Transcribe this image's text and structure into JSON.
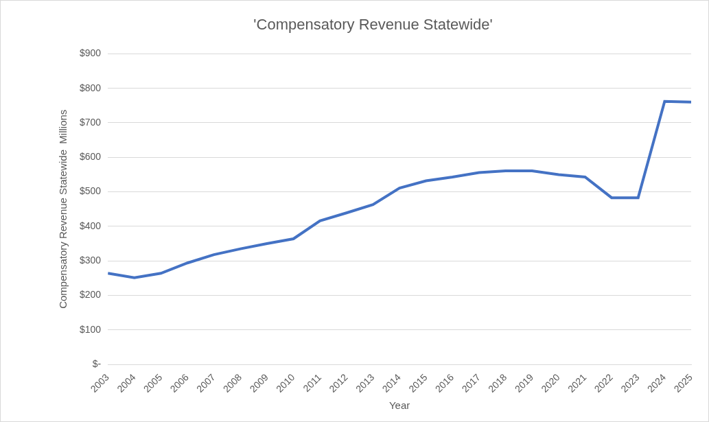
{
  "chart_data": {
    "type": "line",
    "title": "'Compensatory Revenue Statewide'",
    "x_label": "Year",
    "y_label": "Compensatory Revenue Statewide  Millions",
    "categories": [
      "2003",
      "2004",
      "2005",
      "2006",
      "2007",
      "2008",
      "2009",
      "2010",
      "2011",
      "2012",
      "2013",
      "2014",
      "2015",
      "2016",
      "2017",
      "2018",
      "2019",
      "2020",
      "2021",
      "2022",
      "2023",
      "2024",
      "2025"
    ],
    "values": [
      264,
      251,
      264,
      294,
      318,
      335,
      350,
      364,
      416,
      439,
      463,
      511,
      532,
      543,
      556,
      561,
      561,
      550,
      543,
      483,
      483,
      762,
      760
    ],
    "color": "#4472c4",
    "ylim": [
      0,
      900
    ],
    "yticks": [
      {
        "value": 0,
        "label": "$-"
      },
      {
        "value": 100,
        "label": "$100"
      },
      {
        "value": 200,
        "label": "$200"
      },
      {
        "value": 300,
        "label": "$300"
      },
      {
        "value": 400,
        "label": "$400"
      },
      {
        "value": 500,
        "label": "$500"
      },
      {
        "value": 600,
        "label": "$600"
      },
      {
        "value": 700,
        "label": "$700"
      },
      {
        "value": 800,
        "label": "$800"
      },
      {
        "value": 900,
        "label": "$900"
      }
    ],
    "grid": true
  }
}
